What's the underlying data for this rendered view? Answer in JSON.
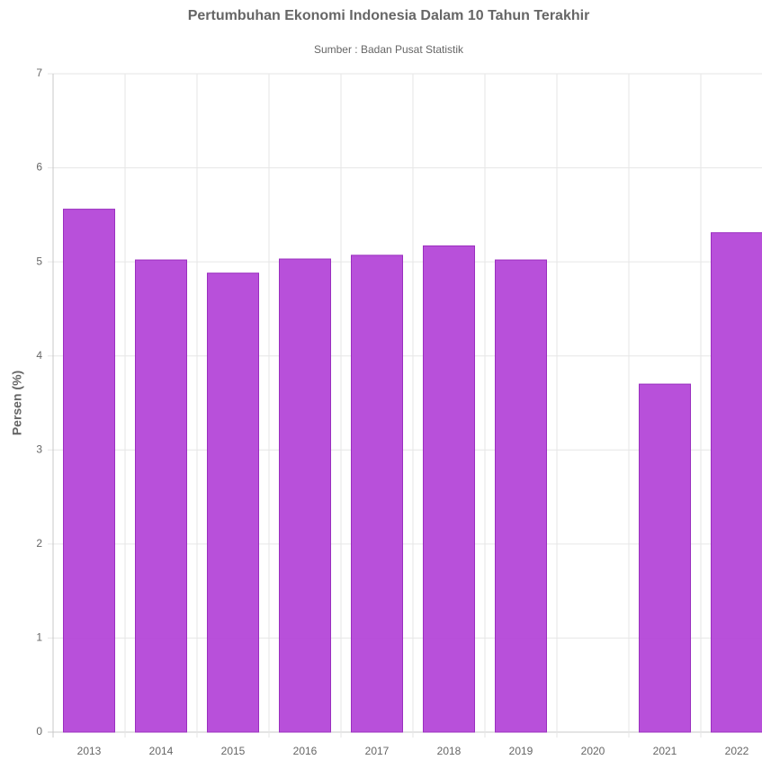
{
  "chart_data": {
    "type": "bar",
    "title": "Pertumbuhan Ekonomi Indonesia Dalam 10 Tahun Terakhir",
    "subtitle": "Sumber : Badan Pusat Statistik",
    "y_label": "Persen (%)",
    "categories": [
      "2013",
      "2014",
      "2015",
      "2016",
      "2017",
      "2018",
      "2019",
      "2020",
      "2021",
      "2022"
    ],
    "values": [
      5.56,
      5.02,
      4.88,
      5.03,
      5.07,
      5.17,
      5.02,
      null,
      3.7,
      5.31
    ],
    "color": "#b447d8",
    "ylim": [
      0,
      7
    ],
    "yticks": [
      0,
      1,
      2,
      3,
      4,
      5,
      6,
      7
    ],
    "grid": true
  }
}
